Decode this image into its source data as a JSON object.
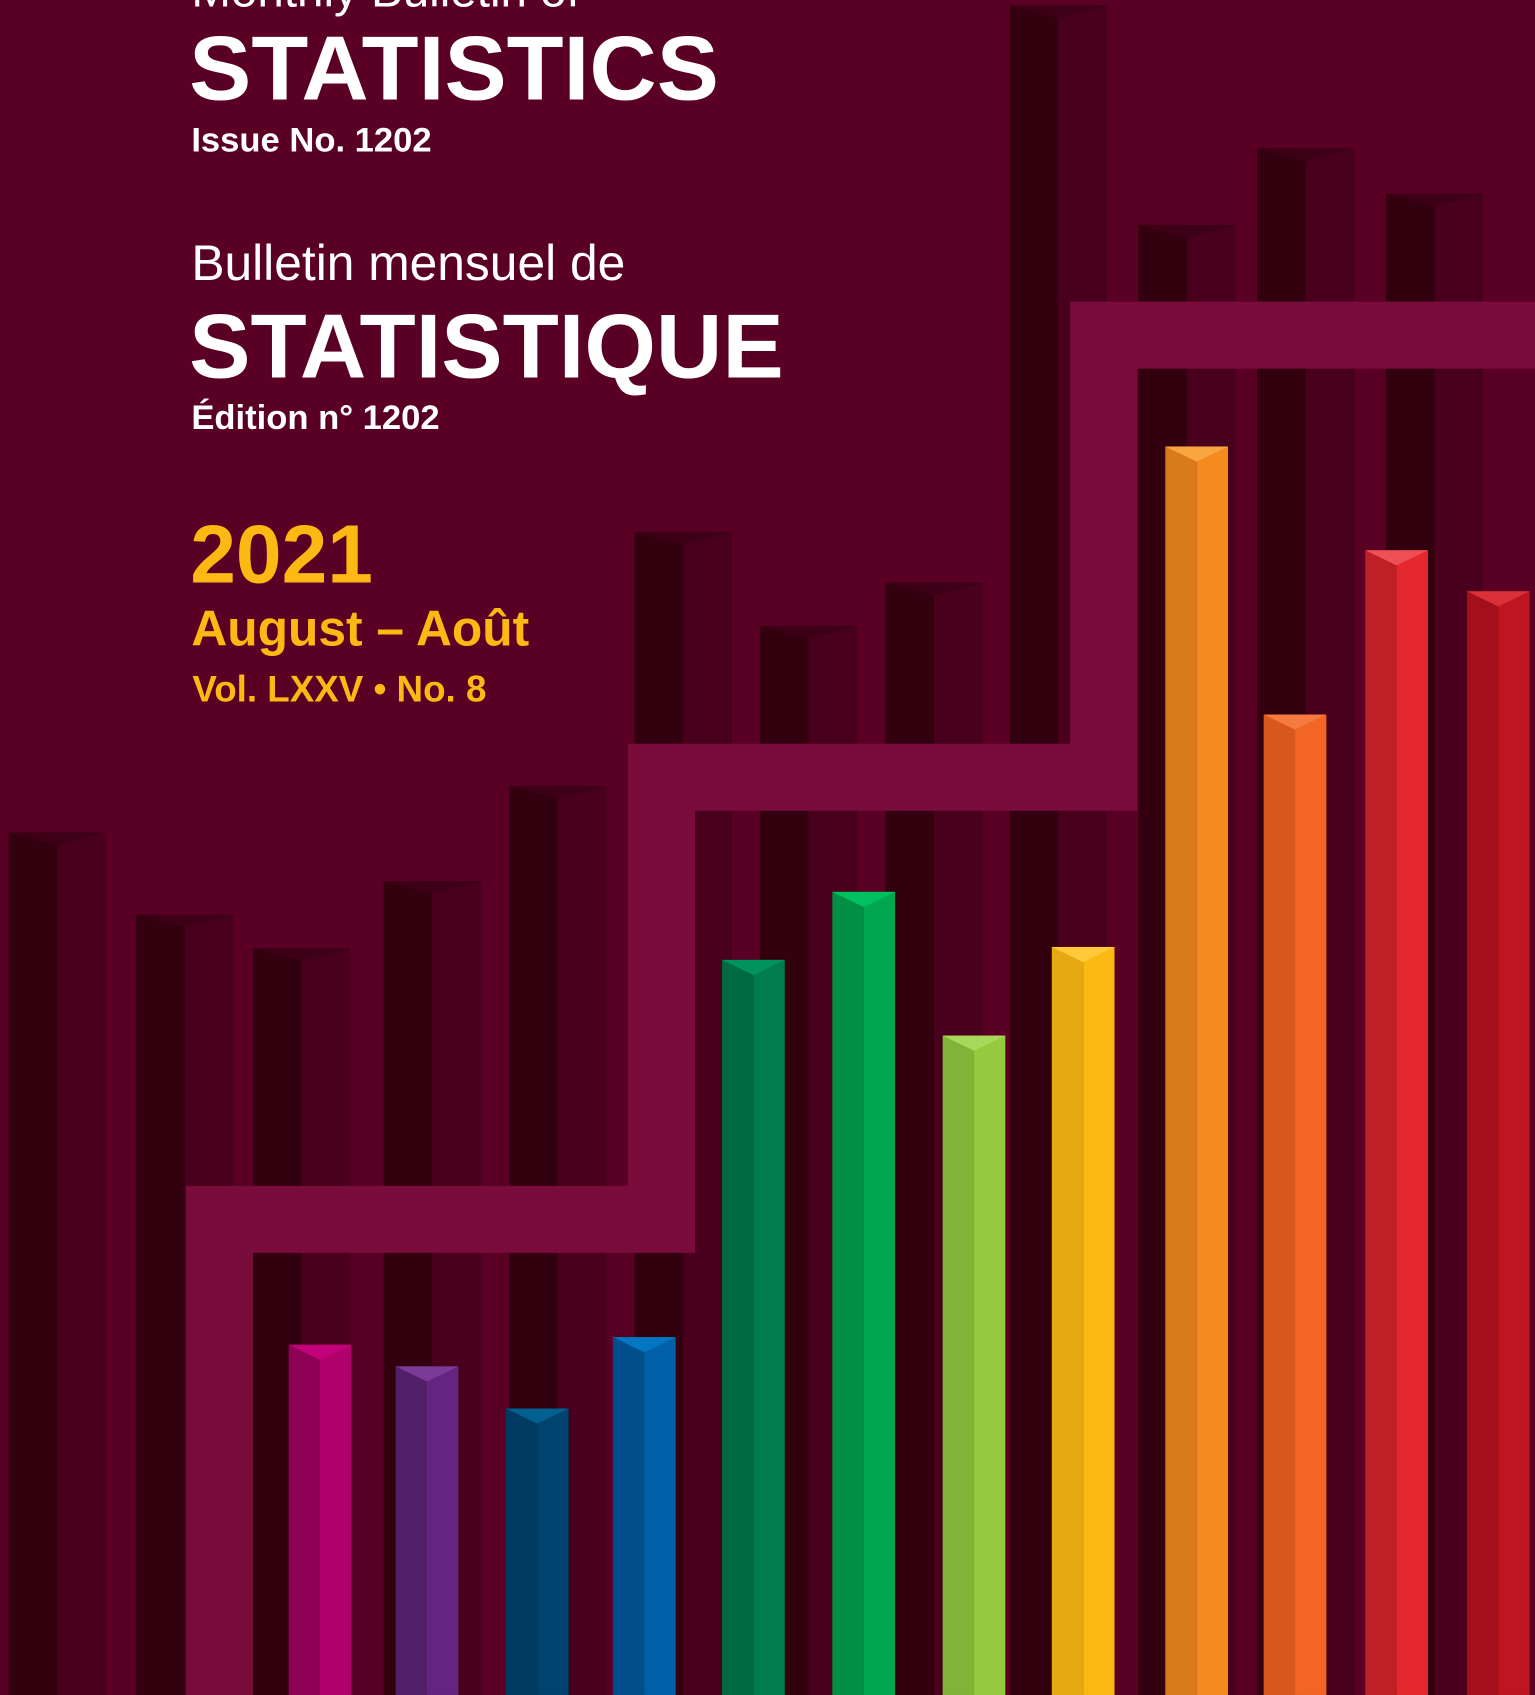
{
  "cover": {
    "english": {
      "prefix": "Monthly Bulletin of",
      "title": "STATISTICS",
      "issue": "Issue No. 1202"
    },
    "french": {
      "prefix": "Bulletin mensuel de",
      "title": "STATISTIQUE",
      "issue": "Édition n° 1202"
    },
    "year": "2021",
    "month": "August – Août",
    "volume": "Vol. LXXV • No. 8"
  }
}
